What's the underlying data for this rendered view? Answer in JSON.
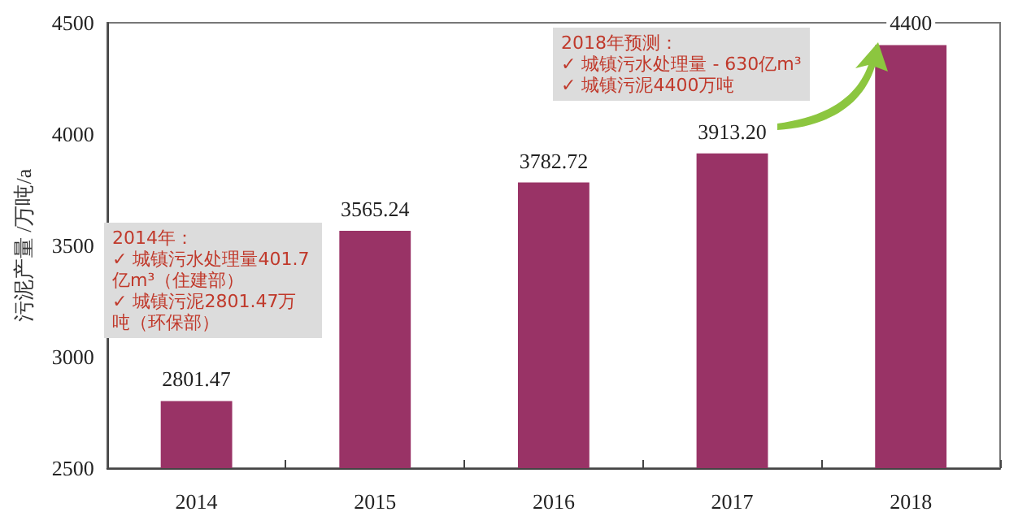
{
  "chart_data": {
    "type": "bar",
    "ylabel": "污泥产量 /万吨/a",
    "categories": [
      "2014",
      "2015",
      "2016",
      "2017",
      "2018"
    ],
    "values": [
      2801.47,
      3565.24,
      3782.72,
      3913.2,
      4400
    ],
    "value_labels": [
      "2801.47",
      "3565.24",
      "3782.72",
      "3913.20",
      "4400"
    ],
    "color": "#993366",
    "ylim": [
      2500,
      4500
    ],
    "yticks": [
      2500,
      3000,
      3500,
      4000,
      4500
    ],
    "grid": false,
    "annotations": [
      "2014年：\n✓ 城镇污水处理量401.7亿m³（住建部）\n✓ 城镇污泥2801.47万吨（环保部）",
      "2018年预测：\n✓ 城镇污水处理量 - 630亿m³\n✓ 城镇污泥4400万吨"
    ]
  }
}
